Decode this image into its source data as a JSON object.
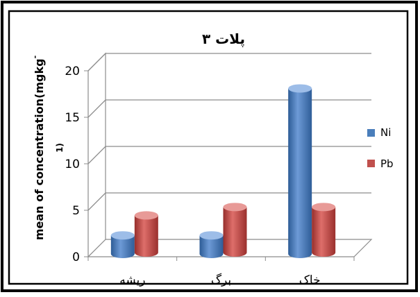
{
  "chart_data": {
    "type": "bar",
    "title": "پلات ۳",
    "xlabel": "",
    "ylabel": "mean of concentration(mgkg-1)",
    "ylabel_line1": "mean of concentration(mgkg",
    "ylabel_sup": "-",
    "ylabel_line2": "1)",
    "categories": [
      "ریشه",
      "برگ",
      "خاک"
    ],
    "series": [
      {
        "name": "Ni",
        "color": "#4a7ebb",
        "values": [
          2.0,
          2.0,
          17.8
        ]
      },
      {
        "name": "Pb",
        "color": "#c0504d",
        "values": [
          4.0,
          4.9,
          4.9
        ]
      }
    ],
    "ylim": [
      0,
      20
    ],
    "yticks": [
      "0",
      "5",
      "10",
      "15",
      "20"
    ],
    "grid": true,
    "legend_position": "right",
    "style": "3d-cylinder"
  }
}
